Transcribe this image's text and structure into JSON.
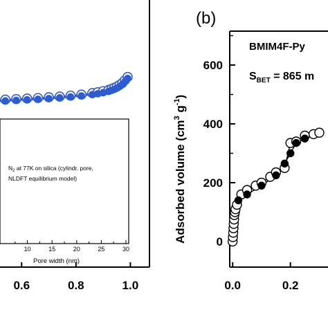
{
  "chart_data": [
    {
      "panel": "a",
      "type": "scatter",
      "title": "",
      "x_ticks": [
        "0.6",
        "0.8",
        "1.0"
      ],
      "xlim": [
        0.5,
        1.05
      ],
      "series": [
        {
          "marker": "open-circle",
          "line": "blue",
          "color": "#2f5bd0",
          "x": [
            0.5,
            0.54,
            0.58,
            0.62,
            0.66,
            0.7,
            0.74,
            0.78,
            0.82,
            0.86,
            0.88,
            0.9,
            0.92,
            0.93,
            0.94,
            0.95,
            0.96,
            0.97,
            0.98,
            0.99
          ],
          "y": [
            0.0,
            0.004,
            0.007,
            0.01,
            0.013,
            0.017,
            0.021,
            0.026,
            0.032,
            0.04,
            0.045,
            0.051,
            0.058,
            0.063,
            0.069,
            0.076,
            0.085,
            0.096,
            0.112,
            0.13
          ]
        },
        {
          "marker": "filled-circle",
          "line": "blue",
          "color": "#2f5bd0",
          "x": [
            0.5,
            0.54,
            0.58,
            0.62,
            0.66,
            0.7,
            0.74,
            0.78,
            0.82,
            0.86,
            0.88,
            0.9,
            0.92,
            0.93,
            0.94,
            0.95,
            0.96,
            0.97,
            0.98,
            0.99
          ],
          "y": [
            -0.006,
            -0.003,
            0.0,
            0.003,
            0.006,
            0.01,
            0.014,
            0.019,
            0.025,
            0.032,
            0.037,
            0.043,
            0.05,
            0.055,
            0.061,
            0.068,
            0.077,
            0.088,
            0.104,
            0.122
          ]
        }
      ]
    },
    {
      "panel": "a-inset",
      "type": "line",
      "annotation_line1": "N",
      "annotation_sub": "2",
      "annotation_line1_rest": " at 77K on silica (cylindr. pore,",
      "annotation_line2": "NLDFT equilibrium model)",
      "xlabel": "Pore width (nm)",
      "x_ticks": [
        "10",
        "15",
        "20",
        "25",
        "30"
      ],
      "xlim": [
        5,
        30
      ]
    },
    {
      "panel": "b",
      "type": "scatter",
      "panel_label": "(b)",
      "legend_title": "BMIM4F-Py",
      "sbet_S": "S",
      "sbet_sub": "BET",
      "sbet_rest": " = 865 m",
      "ylabel_main": "Adsorbed volume (cm",
      "ylabel_sup1": "3",
      "ylabel_mid": " g",
      "ylabel_sup2": "-1",
      "ylabel_end": ")",
      "y_ticks": [
        "0",
        "200",
        "400",
        "600"
      ],
      "x_ticks": [
        "0.0",
        "0.2"
      ],
      "ylim": [
        -100,
        800
      ],
      "xlim": [
        -0.01,
        0.33
      ],
      "series": [
        {
          "marker": "open-circle",
          "x": [
            0.0,
            0.001,
            0.002,
            0.003,
            0.004,
            0.005,
            0.006,
            0.008,
            0.01,
            0.015,
            0.03,
            0.05,
            0.08,
            0.1,
            0.13,
            0.15,
            0.18,
            0.2,
            0.22,
            0.25,
            0.28,
            0.3
          ],
          "y": [
            0,
            15,
            30,
            45,
            60,
            75,
            90,
            100,
            110,
            125,
            160,
            175,
            190,
            200,
            220,
            235,
            250,
            335,
            340,
            360,
            365,
            370
          ]
        },
        {
          "marker": "filled-circle",
          "x": [
            0.02,
            0.05,
            0.1,
            0.15,
            0.18,
            0.2,
            0.22,
            0.25
          ],
          "y": [
            140,
            160,
            190,
            225,
            265,
            300,
            335,
            350
          ]
        }
      ]
    }
  ]
}
